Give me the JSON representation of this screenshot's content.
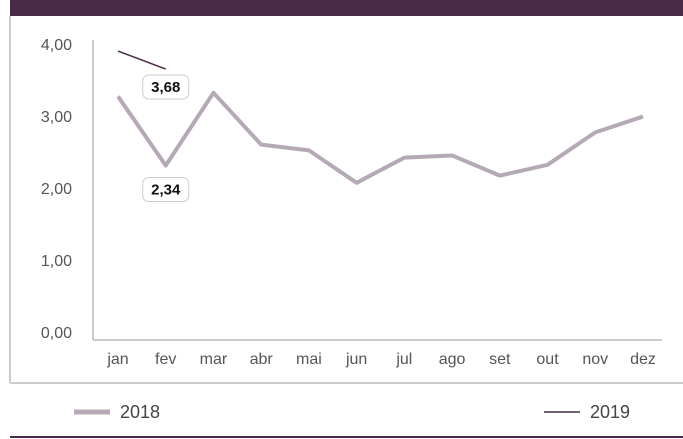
{
  "chart_data": {
    "type": "line",
    "categories": [
      "jan",
      "fev",
      "mar",
      "abr",
      "mai",
      "jun",
      "jul",
      "ago",
      "set",
      "out",
      "nov",
      "dez"
    ],
    "series": [
      {
        "name": "2018",
        "color": "#b5a9b5",
        "values": [
          3.3,
          2.34,
          3.35,
          2.63,
          2.55,
          2.1,
          2.45,
          2.48,
          2.2,
          2.35,
          2.8,
          3.02
        ],
        "value_labels": [
          null,
          "2,34",
          null,
          null,
          null,
          null,
          null,
          null,
          null,
          null,
          null,
          null
        ]
      },
      {
        "name": "2019",
        "color": "#4a2a48",
        "values": [
          3.93,
          3.68,
          null,
          null,
          null,
          null,
          null,
          null,
          null,
          null,
          null,
          null
        ],
        "value_labels": [
          null,
          "3,68",
          null,
          null,
          null,
          null,
          null,
          null,
          null,
          null,
          null,
          null
        ]
      }
    ],
    "ylim": [
      0,
      4
    ],
    "yticks": [
      {
        "value": 0,
        "label": "0,00"
      },
      {
        "value": 1,
        "label": "1,00"
      },
      {
        "value": 2,
        "label": "2,00"
      },
      {
        "value": 3,
        "label": "3,00"
      },
      {
        "value": 4,
        "label": "4,00"
      }
    ],
    "grid": false
  }
}
